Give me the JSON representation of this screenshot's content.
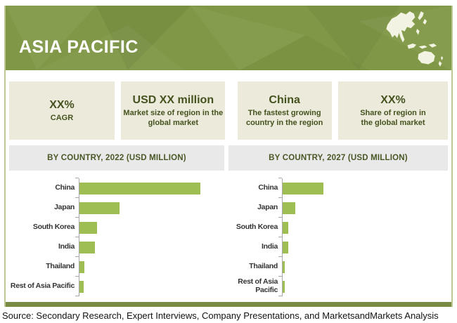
{
  "header": {
    "title": "ASIA PACIFIC"
  },
  "stats": [
    {
      "value": "XX%",
      "label": "CAGR"
    },
    {
      "value": "USD XX million",
      "label": "Market size of region in the global market"
    },
    {
      "value": "China",
      "label": "The fastest growing country in the region"
    },
    {
      "value": "XX%",
      "label": "Share of region in the global market"
    }
  ],
  "chart_data": [
    {
      "type": "bar",
      "orientation": "horizontal",
      "title": "BY COUNTRY, 2022 (USD MILLION)",
      "categories": [
        "China",
        "Japan",
        "South Korea",
        "India",
        "Thailand",
        "Rest of Asia Pacific"
      ],
      "values": [
        172,
        57,
        25,
        22,
        7,
        6
      ],
      "value_scale": "relative bar length in px; numeric values masked as XX in source",
      "value_labels_visible": false,
      "grid": false,
      "legend": "none",
      "bar_color": "#9ebe53"
    },
    {
      "type": "bar",
      "orientation": "horizontal",
      "title": "BY COUNTRY, 2027 (USD MILLION)",
      "categories": [
        "China",
        "Japan",
        "South Korea",
        "India",
        "Thailand",
        "Rest of Asia Pacific"
      ],
      "values": [
        58,
        18,
        8,
        8,
        3,
        2.5
      ],
      "value_scale": "relative bar length in px; numeric values masked as XX in source",
      "value_labels_visible": false,
      "grid": false,
      "legend": "none",
      "bar_color": "#9ebe53"
    }
  ],
  "footer": {
    "source": "Source: Secondary Research, Expert Interviews, Company Presentations, and MarketsandMarkets Analysis"
  },
  "icons": {
    "map": "asia-pacific-map-icon"
  },
  "colors": {
    "band_green": "#7f9746",
    "stat_box_beige": "#ecebdb",
    "stat_text_olive": "#45521f",
    "section_bar_gray": "#e9e9e9",
    "bar_green": "#9ebe53",
    "bottom_bar_olive": "#7a8b44",
    "frame_border": "#bcc792",
    "axis_gray": "#a8a8a8"
  }
}
